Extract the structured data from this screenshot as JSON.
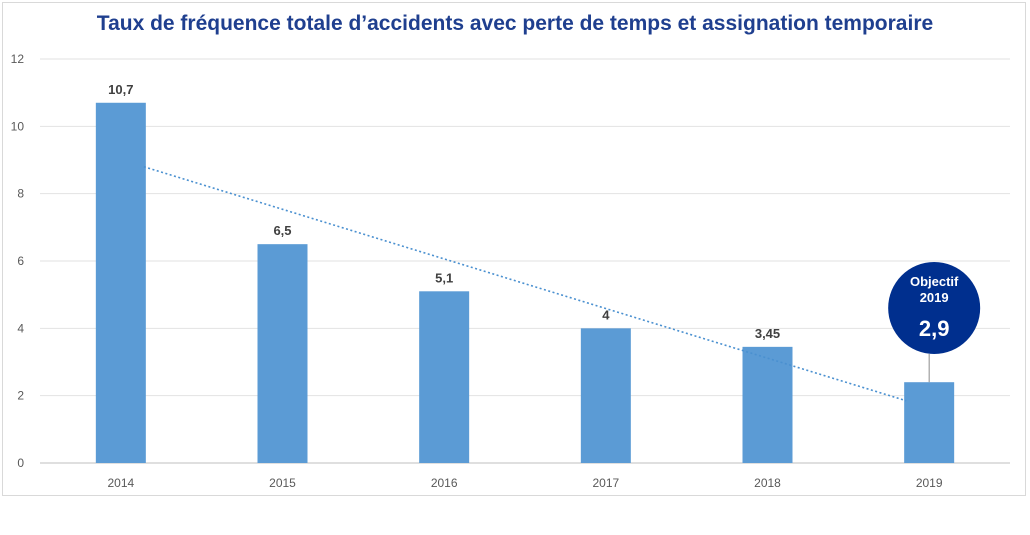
{
  "chart_data": {
    "type": "bar",
    "title": "Taux de fréquence totale d’accidents avec perte de temps et assignation temporaire",
    "xlabel": "",
    "ylabel": "",
    "categories": [
      "2014",
      "2015",
      "2016",
      "2017",
      "2018",
      "2019"
    ],
    "values": [
      10.7,
      6.5,
      5.1,
      4,
      3.45,
      2.4
    ],
    "data_labels": [
      "10,7",
      "6,5",
      "5,1",
      "4",
      "3,45",
      ""
    ],
    "ylim": [
      0,
      12
    ],
    "yticks": [
      "0",
      "2",
      "4",
      "6",
      "8",
      "10",
      "12"
    ],
    "grid": true,
    "legend": "none",
    "trendline": {
      "type": "linear",
      "style": "dotted",
      "from_value": 8.8,
      "to_value": 1.85
    },
    "annotation": {
      "line1": "Objectif",
      "line2": "2019",
      "value": "2,9",
      "category": "2019"
    },
    "colors": {
      "bar": "#5b9bd5",
      "trend": "#4a90d0",
      "callout": "#002f8e",
      "title": "#1f3f8f"
    }
  }
}
